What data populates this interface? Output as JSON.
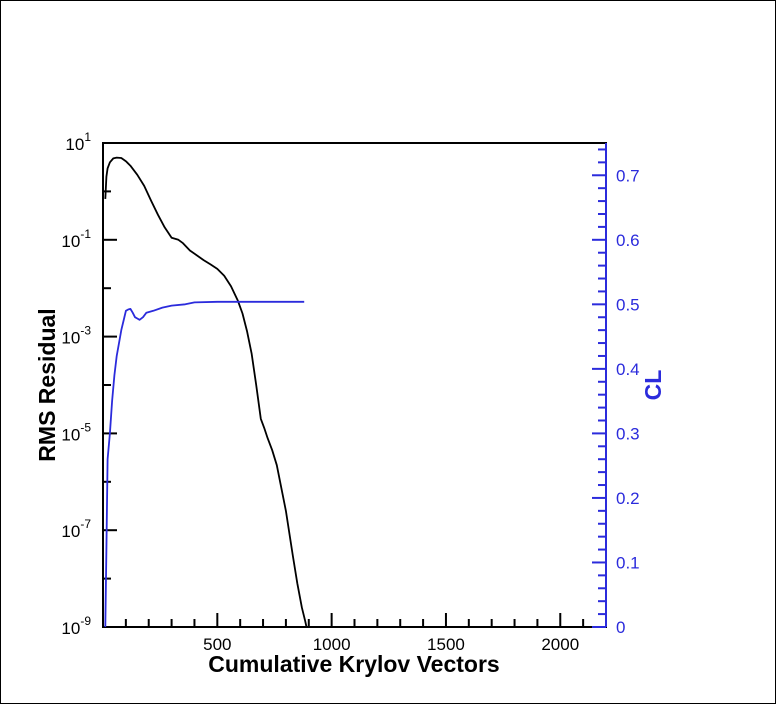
{
  "chart_data": {
    "type": "line",
    "xlabel": "Cumulative Krylov Vectors",
    "ylabel": "RMS Residual",
    "y2label": "CL",
    "xlim": [
      0,
      2200
    ],
    "ylim": [
      1e-09,
      10
    ],
    "yscale": "log",
    "y2lim": [
      0,
      0.75
    ],
    "grid": false,
    "x_ticks": [
      500,
      1000,
      1500,
      2000
    ],
    "y_ticks": [
      {
        "base": "10",
        "exp": "1",
        "value": 10
      },
      {
        "base": "10",
        "exp": "-1",
        "value": 0.1
      },
      {
        "base": "10",
        "exp": "-3",
        "value": 0.001
      },
      {
        "base": "10",
        "exp": "-5",
        "value": 1e-05
      },
      {
        "base": "10",
        "exp": "-7",
        "value": 1e-07
      },
      {
        "base": "10",
        "exp": "-9",
        "value": 1e-09
      }
    ],
    "y2_ticks": [
      "0",
      "0.1",
      "0.2",
      "0.3",
      "0.4",
      "0.5",
      "0.6",
      "0.7"
    ],
    "colors": {
      "residual": "#000000",
      "cl": "#2b2bdc",
      "axis": "#000000",
      "axis2": "#2b2bdc"
    },
    "series": [
      {
        "axis": "left",
        "x": [
          10,
          15,
          20,
          30,
          45,
          60,
          80,
          100,
          120,
          150,
          180,
          210,
          240,
          270,
          300,
          330,
          350,
          380,
          410,
          440,
          470,
          500,
          530,
          560,
          590,
          610,
          630,
          650,
          670,
          690,
          705,
          720,
          740,
          760,
          780,
          800,
          830,
          850,
          870,
          885,
          890
        ],
        "y": [
          0.7,
          2.0,
          3.0,
          4.0,
          4.8,
          5.0,
          4.9,
          4.2,
          3.4,
          2.2,
          1.3,
          0.65,
          0.33,
          0.18,
          0.11,
          0.1,
          0.085,
          0.06,
          0.048,
          0.038,
          0.031,
          0.025,
          0.018,
          0.011,
          0.0055,
          0.003,
          0.0013,
          0.00045,
          0.0001,
          2e-05,
          1.3e-05,
          8e-06,
          4.5e-06,
          2.2e-06,
          7.5e-07,
          2.5e-07,
          3e-08,
          8e-09,
          2.5e-09,
          1.3e-09,
          1e-09
        ]
      },
      {
        "axis": "right",
        "x": [
          10,
          15,
          20,
          30,
          40,
          50,
          60,
          70,
          80,
          90,
          100,
          110,
          120,
          130,
          140,
          150,
          160,
          175,
          190,
          220,
          260,
          300,
          360,
          400,
          500,
          600,
          700,
          800,
          880
        ],
        "y": [
          0.0,
          0.12,
          0.26,
          0.3,
          0.35,
          0.39,
          0.42,
          0.44,
          0.46,
          0.475,
          0.49,
          0.492,
          0.493,
          0.487,
          0.48,
          0.478,
          0.476,
          0.48,
          0.487,
          0.49,
          0.495,
          0.498,
          0.5,
          0.503,
          0.504,
          0.504,
          0.504,
          0.504,
          0.504
        ]
      }
    ]
  }
}
